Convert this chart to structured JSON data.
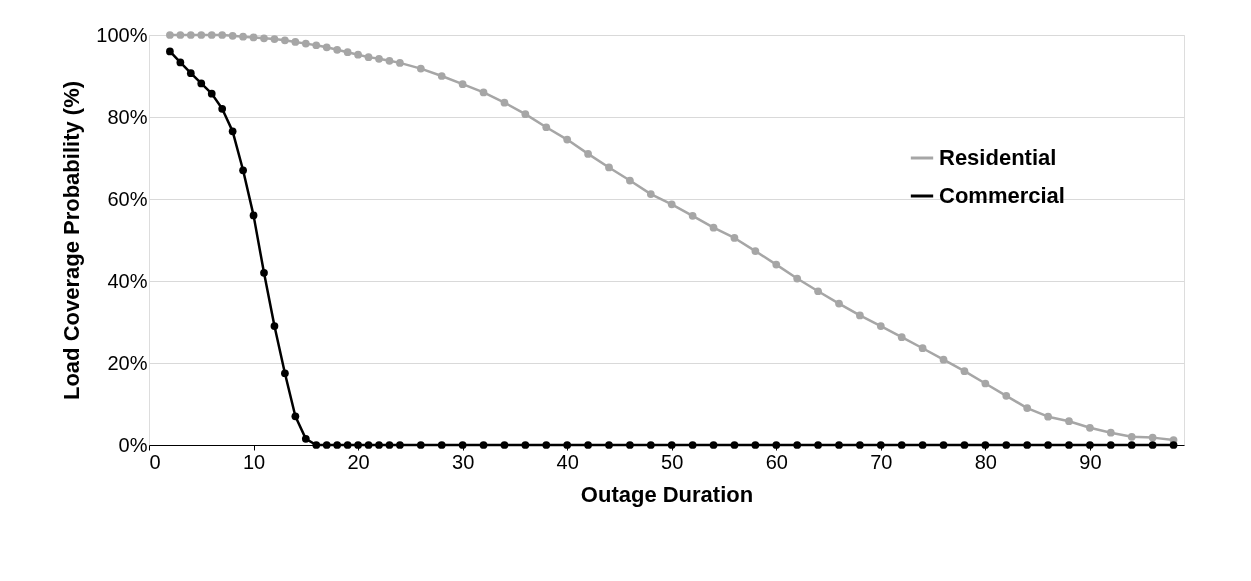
{
  "chart_data": {
    "type": "line",
    "xlabel": "Outage Duration",
    "ylabel": "Load Coverage Probability (%)",
    "x": [
      2,
      3,
      4,
      5,
      6,
      7,
      8,
      9,
      10,
      11,
      12,
      13,
      14,
      15,
      16,
      17,
      18,
      19,
      20,
      21,
      22,
      23,
      24,
      26,
      28,
      30,
      32,
      34,
      36,
      38,
      40,
      42,
      44,
      46,
      48,
      50,
      52,
      54,
      56,
      58,
      60,
      62,
      64,
      66,
      68,
      70,
      72,
      74,
      76,
      78,
      80,
      82,
      84,
      86,
      88,
      90,
      92,
      94,
      96,
      98
    ],
    "series": [
      {
        "name": "Residential",
        "color": "#a6a6a6",
        "marker": "circle",
        "values": [
          100,
          100,
          100,
          100,
          100,
          100,
          99.8,
          99.6,
          99.4,
          99.2,
          99,
          98.7,
          98.3,
          97.9,
          97.5,
          97,
          96.4,
          95.8,
          95.2,
          94.6,
          94.2,
          93.7,
          93.2,
          91.8,
          90,
          88,
          86,
          83.5,
          80.7,
          77.5,
          74.5,
          71,
          67.7,
          64.5,
          61.2,
          58.7,
          55.9,
          53,
          50.5,
          47.3,
          44,
          40.6,
          37.5,
          34.5,
          31.6,
          29,
          26.3,
          23.6,
          20.8,
          18,
          15,
          12,
          9,
          6.9,
          5.8,
          4.2,
          3,
          2,
          1.8,
          1.2
        ]
      },
      {
        "name": "Commercial",
        "color": "#000000",
        "marker": "circle",
        "values": [
          96,
          93.3,
          90.7,
          88.2,
          85.7,
          82,
          76.5,
          67,
          56,
          42,
          29,
          17.5,
          7,
          1.5,
          0,
          0,
          0,
          0,
          0,
          0,
          0,
          0,
          0,
          0,
          0,
          0,
          0,
          0,
          0,
          0,
          0,
          0,
          0,
          0,
          0,
          0,
          0,
          0,
          0,
          0,
          0,
          0,
          0,
          0,
          0,
          0,
          0,
          0,
          0,
          0,
          0,
          0,
          0,
          0,
          0,
          0,
          0,
          0,
          0,
          0
        ]
      }
    ],
    "xlim": [
      0,
      99
    ],
    "xticks": [
      0,
      10,
      20,
      30,
      40,
      50,
      60,
      70,
      80,
      90
    ],
    "ylim": [
      0,
      100
    ],
    "yticks": [
      {
        "value": 0,
        "label": "0%"
      },
      {
        "value": 20,
        "label": "20%"
      },
      {
        "value": 40,
        "label": "40%"
      },
      {
        "value": 60,
        "label": "60%"
      },
      {
        "value": 80,
        "label": "80%"
      },
      {
        "value": 100,
        "label": "100%"
      }
    ],
    "grid": "y",
    "legend": "right",
    "line_style": "solid"
  }
}
